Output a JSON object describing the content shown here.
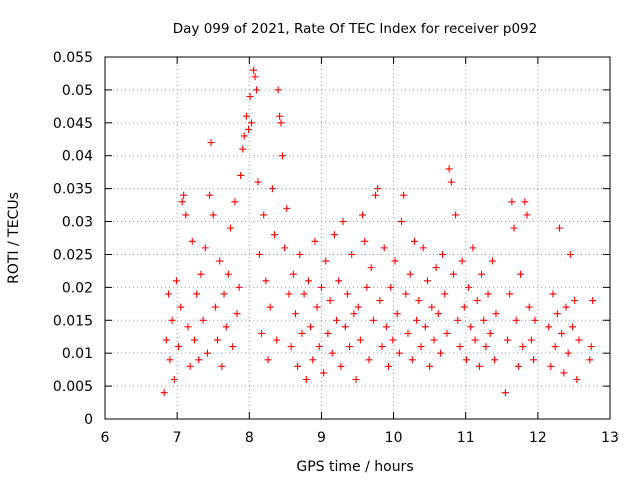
{
  "chart_data": {
    "type": "scatter",
    "title": "Day 099 of 2021, Rate Of TEC Index for receiver p092",
    "xlabel": "GPS time / hours",
    "ylabel": "ROTI / TECUs",
    "xlim": [
      6,
      13
    ],
    "ylim": [
      0,
      0.055
    ],
    "x_ticks": [
      "6",
      "7",
      "8",
      "9",
      "10",
      "11",
      "12",
      "13"
    ],
    "y_ticks": [
      "0",
      "0.005",
      "0.01",
      "0.015",
      "0.02",
      "0.025",
      "0.03",
      "0.035",
      "0.04",
      "0.045",
      "0.05",
      "0.055"
    ],
    "grid": true,
    "marker": "+",
    "color": "#ff0000",
    "series": [
      {
        "name": "ROTI",
        "points": [
          [
            6.82,
            0.004
          ],
          [
            6.85,
            0.012
          ],
          [
            6.88,
            0.019
          ],
          [
            6.9,
            0.009
          ],
          [
            6.93,
            0.015
          ],
          [
            6.96,
            0.006
          ],
          [
            6.99,
            0.021
          ],
          [
            7.02,
            0.011
          ],
          [
            7.05,
            0.017
          ],
          [
            7.07,
            0.033
          ],
          [
            7.09,
            0.034
          ],
          [
            7.12,
            0.031
          ],
          [
            7.15,
            0.014
          ],
          [
            7.18,
            0.008
          ],
          [
            7.21,
            0.027
          ],
          [
            7.24,
            0.012
          ],
          [
            7.27,
            0.019
          ],
          [
            7.3,
            0.009
          ],
          [
            7.33,
            0.022
          ],
          [
            7.36,
            0.015
          ],
          [
            7.39,
            0.026
          ],
          [
            7.42,
            0.01
          ],
          [
            7.45,
            0.034
          ],
          [
            7.47,
            0.042
          ],
          [
            7.5,
            0.031
          ],
          [
            7.53,
            0.017
          ],
          [
            7.56,
            0.012
          ],
          [
            7.59,
            0.024
          ],
          [
            7.62,
            0.008
          ],
          [
            7.65,
            0.019
          ],
          [
            7.68,
            0.014
          ],
          [
            7.71,
            0.022
          ],
          [
            7.74,
            0.029
          ],
          [
            7.77,
            0.011
          ],
          [
            7.8,
            0.033
          ],
          [
            7.83,
            0.016
          ],
          [
            7.86,
            0.02
          ],
          [
            7.88,
            0.037
          ],
          [
            7.91,
            0.041
          ],
          [
            7.93,
            0.043
          ],
          [
            7.96,
            0.046
          ],
          [
            7.99,
            0.044
          ],
          [
            8.01,
            0.049
          ],
          [
            8.03,
            0.045
          ],
          [
            8.06,
            0.053
          ],
          [
            8.08,
            0.052
          ],
          [
            8.1,
            0.05
          ],
          [
            8.12,
            0.036
          ],
          [
            8.14,
            0.025
          ],
          [
            8.17,
            0.013
          ],
          [
            8.2,
            0.031
          ],
          [
            8.23,
            0.021
          ],
          [
            8.26,
            0.009
          ],
          [
            8.29,
            0.017
          ],
          [
            8.32,
            0.035
          ],
          [
            8.35,
            0.028
          ],
          [
            8.38,
            0.012
          ],
          [
            8.4,
            0.05
          ],
          [
            8.42,
            0.046
          ],
          [
            8.44,
            0.045
          ],
          [
            8.46,
            0.04
          ],
          [
            8.49,
            0.026
          ],
          [
            8.52,
            0.032
          ],
          [
            8.55,
            0.019
          ],
          [
            8.58,
            0.011
          ],
          [
            8.61,
            0.022
          ],
          [
            8.64,
            0.016
          ],
          [
            8.67,
            0.008
          ],
          [
            8.7,
            0.025
          ],
          [
            8.73,
            0.013
          ],
          [
            8.76,
            0.019
          ],
          [
            8.79,
            0.006
          ],
          [
            8.82,
            0.021
          ],
          [
            8.85,
            0.014
          ],
          [
            8.88,
            0.009
          ],
          [
            8.91,
            0.027
          ],
          [
            8.94,
            0.017
          ],
          [
            8.97,
            0.011
          ],
          [
            9.0,
            0.02
          ],
          [
            9.03,
            0.007
          ],
          [
            9.06,
            0.024
          ],
          [
            9.09,
            0.013
          ],
          [
            9.12,
            0.018
          ],
          [
            9.15,
            0.01
          ],
          [
            9.18,
            0.028
          ],
          [
            9.21,
            0.015
          ],
          [
            9.24,
            0.021
          ],
          [
            9.27,
            0.008
          ],
          [
            9.3,
            0.03
          ],
          [
            9.33,
            0.014
          ],
          [
            9.36,
            0.019
          ],
          [
            9.39,
            0.011
          ],
          [
            9.42,
            0.025
          ],
          [
            9.45,
            0.016
          ],
          [
            9.48,
            0.006
          ],
          [
            9.51,
            0.017
          ],
          [
            9.54,
            0.012
          ],
          [
            9.57,
            0.031
          ],
          [
            9.6,
            0.027
          ],
          [
            9.63,
            0.02
          ],
          [
            9.66,
            0.009
          ],
          [
            9.69,
            0.023
          ],
          [
            9.72,
            0.015
          ],
          [
            9.75,
            0.034
          ],
          [
            9.78,
            0.035
          ],
          [
            9.81,
            0.018
          ],
          [
            9.84,
            0.011
          ],
          [
            9.87,
            0.026
          ],
          [
            9.9,
            0.014
          ],
          [
            9.93,
            0.008
          ],
          [
            9.96,
            0.02
          ],
          [
            9.99,
            0.012
          ],
          [
            10.02,
            0.024
          ],
          [
            10.05,
            0.016
          ],
          [
            10.08,
            0.01
          ],
          [
            10.11,
            0.03
          ],
          [
            10.14,
            0.034
          ],
          [
            10.17,
            0.019
          ],
          [
            10.2,
            0.013
          ],
          [
            10.23,
            0.022
          ],
          [
            10.26,
            0.009
          ],
          [
            10.29,
            0.027
          ],
          [
            10.32,
            0.015
          ],
          [
            10.35,
            0.018
          ],
          [
            10.38,
            0.011
          ],
          [
            10.41,
            0.026
          ],
          [
            10.44,
            0.014
          ],
          [
            10.47,
            0.021
          ],
          [
            10.5,
            0.008
          ],
          [
            10.53,
            0.017
          ],
          [
            10.56,
            0.012
          ],
          [
            10.59,
            0.023
          ],
          [
            10.62,
            0.016
          ],
          [
            10.65,
            0.01
          ],
          [
            10.68,
            0.025
          ],
          [
            10.71,
            0.019
          ],
          [
            10.74,
            0.013
          ],
          [
            10.77,
            0.038
          ],
          [
            10.8,
            0.036
          ],
          [
            10.83,
            0.022
          ],
          [
            10.86,
            0.031
          ],
          [
            10.89,
            0.015
          ],
          [
            10.92,
            0.011
          ],
          [
            10.95,
            0.024
          ],
          [
            10.98,
            0.017
          ],
          [
            11.01,
            0.009
          ],
          [
            11.04,
            0.02
          ],
          [
            11.07,
            0.014
          ],
          [
            11.1,
            0.026
          ],
          [
            11.13,
            0.012
          ],
          [
            11.16,
            0.018
          ],
          [
            11.19,
            0.008
          ],
          [
            11.22,
            0.022
          ],
          [
            11.25,
            0.015
          ],
          [
            11.28,
            0.011
          ],
          [
            11.31,
            0.019
          ],
          [
            11.34,
            0.013
          ],
          [
            11.37,
            0.024
          ],
          [
            11.4,
            0.009
          ],
          [
            11.42,
            0.016
          ],
          [
            11.55,
            0.004
          ],
          [
            11.58,
            0.012
          ],
          [
            11.61,
            0.019
          ],
          [
            11.64,
            0.033
          ],
          [
            11.67,
            0.029
          ],
          [
            11.7,
            0.015
          ],
          [
            11.73,
            0.008
          ],
          [
            11.76,
            0.022
          ],
          [
            11.79,
            0.011
          ],
          [
            11.82,
            0.033
          ],
          [
            11.85,
            0.031
          ],
          [
            11.88,
            0.017
          ],
          [
            11.91,
            0.012
          ],
          [
            11.94,
            0.009
          ],
          [
            11.96,
            0.015
          ],
          [
            12.15,
            0.014
          ],
          [
            12.18,
            0.008
          ],
          [
            12.21,
            0.019
          ],
          [
            12.24,
            0.011
          ],
          [
            12.27,
            0.016
          ],
          [
            12.3,
            0.029
          ],
          [
            12.33,
            0.013
          ],
          [
            12.36,
            0.007
          ],
          [
            12.39,
            0.017
          ],
          [
            12.42,
            0.01
          ],
          [
            12.45,
            0.025
          ],
          [
            12.48,
            0.014
          ],
          [
            12.51,
            0.018
          ],
          [
            12.54,
            0.006
          ],
          [
            12.57,
            0.012
          ],
          [
            12.72,
            0.009
          ],
          [
            12.74,
            0.011
          ],
          [
            12.76,
            0.018
          ]
        ]
      }
    ]
  }
}
